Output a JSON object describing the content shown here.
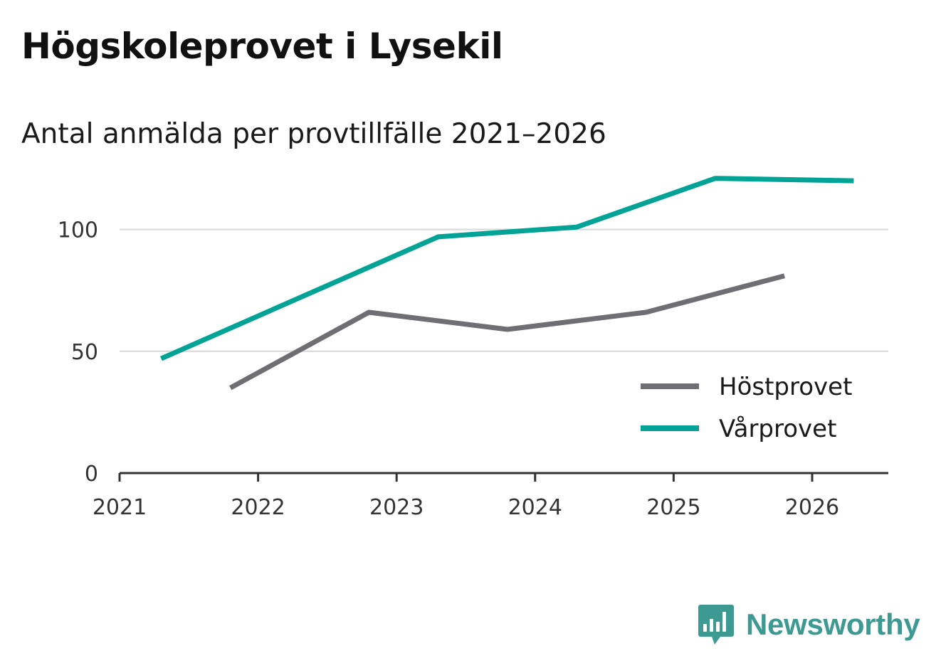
{
  "header": {
    "title": "Högskoleprovet i Lysekil",
    "subtitle": "Antal anmälda per provtillfälle 2021–2026"
  },
  "brand": {
    "name": "Newsworthy"
  },
  "chart_data": {
    "type": "line",
    "title": "Högskoleprovet i Lysekil",
    "subtitle": "Antal anmälda per provtillfälle 2021–2026",
    "xlabel": "",
    "ylabel": "",
    "xlim": [
      2021,
      2026.55
    ],
    "ylim": [
      0,
      125
    ],
    "x_ticks": [
      2021,
      2022,
      2023,
      2024,
      2025,
      2026
    ],
    "y_ticks": [
      0,
      50,
      100
    ],
    "grid": true,
    "legend_position": "bottom-right",
    "series": [
      {
        "name": "Höstprovet",
        "color": "#6e6e73",
        "points": [
          {
            "x": 2021.8,
            "y": 35
          },
          {
            "x": 2022.8,
            "y": 66
          },
          {
            "x": 2023.8,
            "y": 59
          },
          {
            "x": 2024.8,
            "y": 66
          },
          {
            "x": 2025.8,
            "y": 81
          }
        ]
      },
      {
        "name": "Vårprovet",
        "color": "#00a396",
        "points": [
          {
            "x": 2021.3,
            "y": 47
          },
          {
            "x": 2023.3,
            "y": 97
          },
          {
            "x": 2024.3,
            "y": 101
          },
          {
            "x": 2025.3,
            "y": 121
          },
          {
            "x": 2026.3,
            "y": 120
          }
        ]
      }
    ]
  }
}
